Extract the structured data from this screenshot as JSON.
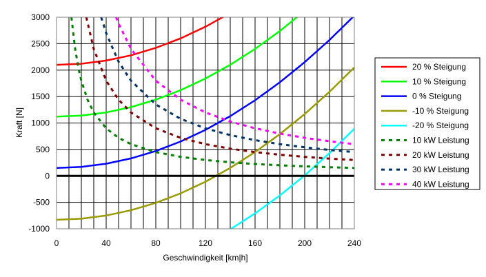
{
  "chart_data": {
    "type": "line",
    "xlabel": "Geschwindigkeit [km|h]",
    "ylabel": "Kraft [N]",
    "xlim": [
      0,
      240
    ],
    "ylim": [
      -1000,
      3000
    ],
    "x_ticks": [
      "0",
      "40",
      "80",
      "120",
      "160",
      "200",
      "240"
    ],
    "y_ticks": [
      "3000",
      "2500",
      "2000",
      "1500",
      "1000",
      "500",
      "0",
      "-500",
      "-1000"
    ],
    "grid": true,
    "legend_position": "right",
    "series": [
      {
        "name": "20  % Steigung",
        "color": "#ff0000",
        "style": "solid",
        "x": [
          0,
          20,
          40,
          60,
          80,
          100,
          120,
          140
        ],
        "y": [
          2100,
          2120,
          2180,
          2280,
          2420,
          2600,
          2820,
          3080
        ]
      },
      {
        "name": "10  % Steigung",
        "color": "#00ff00",
        "style": "solid",
        "x": [
          0,
          20,
          40,
          60,
          80,
          100,
          120,
          140,
          160,
          180,
          200,
          210
        ],
        "y": [
          1120,
          1140,
          1200,
          1300,
          1440,
          1620,
          1840,
          2100,
          2400,
          2740,
          3120,
          3330
        ]
      },
      {
        "name": "0  % Steigung",
        "color": "#0000ff",
        "style": "solid",
        "x": [
          0,
          20,
          40,
          60,
          80,
          100,
          120,
          140,
          160,
          180,
          200,
          220,
          240
        ],
        "y": [
          150,
          170,
          230,
          330,
          470,
          650,
          870,
          1130,
          1430,
          1770,
          2150,
          2570,
          3030
        ]
      },
      {
        "name": "-10  % Steigung",
        "color": "#999900",
        "style": "solid",
        "x": [
          0,
          20,
          40,
          60,
          80,
          100,
          120,
          140,
          160,
          180,
          200,
          220,
          240
        ],
        "y": [
          -830,
          -810,
          -750,
          -650,
          -510,
          -330,
          -110,
          150,
          450,
          790,
          1170,
          1590,
          2050
        ]
      },
      {
        "name": "-20  % Steigung",
        "color": "#00ffff",
        "style": "solid",
        "x": [
          140,
          160,
          180,
          200,
          220,
          240
        ],
        "y": [
          -1010,
          -710,
          -370,
          10,
          430,
          890
        ]
      },
      {
        "name": "10 kW Leistung",
        "color": "#008000",
        "style": "dotted",
        "x": [
          12,
          15,
          18,
          20,
          25,
          30,
          40,
          50,
          60,
          80,
          100,
          120,
          140,
          160,
          180,
          200,
          220,
          240
        ],
        "y": [
          3000,
          2400,
          2000,
          1800,
          1440,
          1200,
          900,
          720,
          600,
          450,
          360,
          300,
          257,
          225,
          200,
          180,
          164,
          150
        ]
      },
      {
        "name": "20 kW Leistung",
        "color": "#800000",
        "style": "dotted",
        "x": [
          24,
          30,
          40,
          50,
          60,
          80,
          100,
          120,
          140,
          160,
          180,
          200,
          220,
          240
        ],
        "y": [
          3000,
          2400,
          1800,
          1440,
          1200,
          900,
          720,
          600,
          514,
          450,
          400,
          360,
          327,
          300
        ]
      },
      {
        "name": "30 kW Leistung",
        "color": "#003366",
        "style": "dotted",
        "x": [
          36,
          40,
          50,
          60,
          80,
          100,
          120,
          140,
          160,
          180,
          200,
          220,
          240
        ],
        "y": [
          3000,
          2700,
          2160,
          1800,
          1350,
          1080,
          900,
          771,
          675,
          600,
          540,
          491,
          450
        ]
      },
      {
        "name": "40 kW Leistung",
        "color": "#ff00ff",
        "style": "dotted",
        "x": [
          48,
          50,
          60,
          80,
          100,
          120,
          140,
          160,
          180,
          200,
          220,
          240
        ],
        "y": [
          3000,
          2880,
          2400,
          1800,
          1440,
          1200,
          1029,
          900,
          800,
          720,
          655,
          600
        ]
      }
    ]
  }
}
